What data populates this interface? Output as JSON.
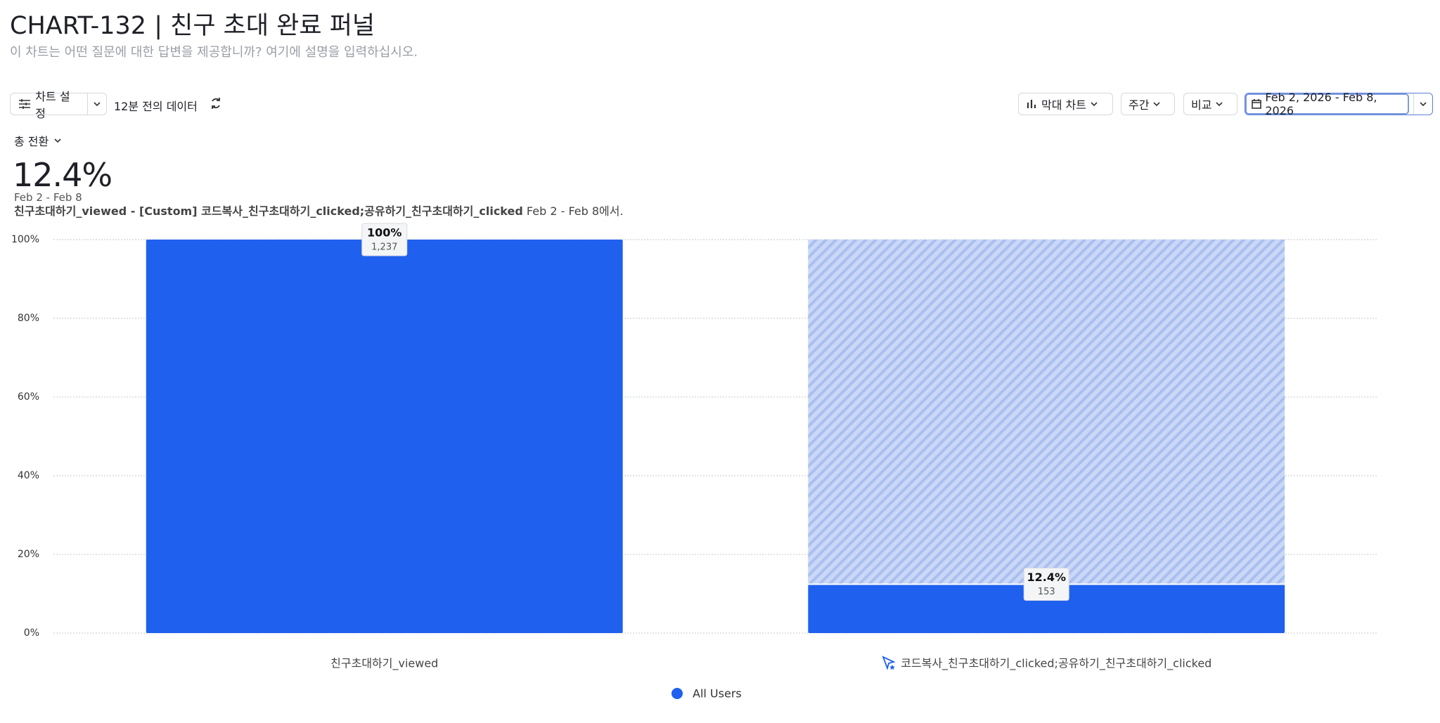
{
  "header": {
    "title": "CHART-132 | 친구 초대 완료 퍼널",
    "subtitle": "이 차트는 어떤 질문에 대한 답변을 제공합니까? 여기에 설명을 입력하십시오."
  },
  "toolbar": {
    "settings": "차트 설정",
    "freshness": "12분 전의 데이터",
    "chart_type": "막대 차트",
    "interval": "주간",
    "compare": "비교",
    "date_range": "Feb 2, 2026 - Feb 8, 2026"
  },
  "summary": {
    "metric": "총 전환",
    "value": "12.4%",
    "period": "Feb 2 - Feb 8",
    "description_bold": "친구초대하기_viewed - [Custom] 코드복사_친구초대하기_clicked;공유하기_친구초대하기_clicked",
    "description_rest": " Feb 2 - Feb 8에서."
  },
  "chart_data": {
    "type": "bar",
    "categories": [
      "친구초대하기_viewed",
      "코드복사_친구초대하기_clicked;공유하기_친구초대하기_clicked"
    ],
    "series": [
      {
        "name": "All Users",
        "color": "#1f60ef",
        "values": [
          100,
          12.4
        ],
        "value_labels": [
          "100%",
          "12.4%"
        ],
        "count_labels": [
          "1,237",
          "153"
        ]
      }
    ],
    "ylim": [
      0,
      100
    ],
    "yticks": [
      {
        "value": 0,
        "label": "0%"
      },
      {
        "value": 20,
        "label": "20%"
      },
      {
        "value": 40,
        "label": "40%"
      },
      {
        "value": 60,
        "label": "60%"
      },
      {
        "value": 80,
        "label": "80%"
      },
      {
        "value": 100,
        "label": "100%"
      }
    ],
    "grid": true,
    "legend": "bottom"
  }
}
